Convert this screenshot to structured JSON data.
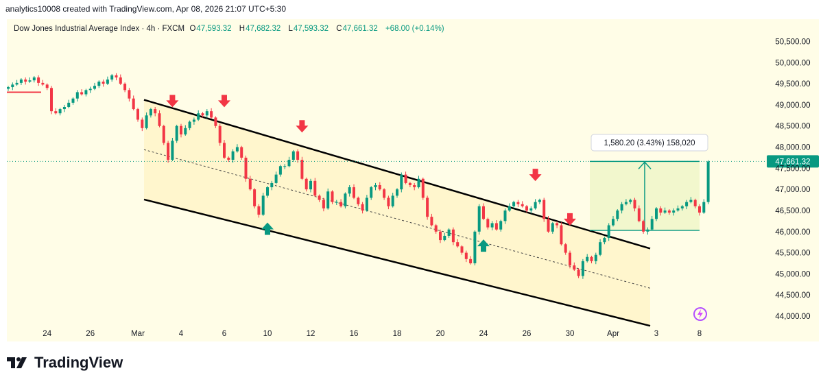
{
  "header": {
    "text": "analytics10008 created with TradingView.com, Apr 08, 2026 21:07 UTC+5:30"
  },
  "legend": {
    "symbol": "Dow Jones Industrial Average Index · 4h · FXCM",
    "o_label": "O",
    "o_value": "47,593.32",
    "h_label": "H",
    "h_value": "47,682.32",
    "l_label": "L",
    "l_value": "47,593.32",
    "c_label": "C",
    "c_value": "47,661.32",
    "change": "+68.00 (+0.14%)"
  },
  "footer": {
    "brand": "TradingView"
  },
  "chart_data": {
    "type": "candlestick",
    "title": "Dow Jones Industrial Average Index · 4h · FXCM",
    "ylim": [
      43800,
      50700
    ],
    "y_ticks": [
      44000,
      44500,
      45000,
      45500,
      46000,
      46500,
      47000,
      47500,
      48000,
      48500,
      49000,
      49500,
      50000,
      50500
    ],
    "y_tick_labels": [
      "44,000.00",
      "44,500.00",
      "45,000.00",
      "45,500.00",
      "46,000.00",
      "46,500.00",
      "47,000.00",
      "47,500.00",
      "48,000.00",
      "48,500.00",
      "49,000.00",
      "49,500.00",
      "50,000.00",
      "50,500.00"
    ],
    "x_tick_labels": [
      "24",
      "26",
      "Mar",
      "4",
      "6",
      "10",
      "12",
      "16",
      "18",
      "20",
      "24",
      "26",
      "30",
      "Apr",
      "3",
      "8"
    ],
    "x_tick_index": [
      9,
      19,
      30,
      40,
      50,
      60,
      70,
      80,
      90,
      100,
      110,
      120,
      130,
      140,
      150,
      160
    ],
    "last_price": 47661.32,
    "last_price_label": "47,661.32",
    "close": [
      49420,
      49480,
      49520,
      49600,
      49550,
      49580,
      49650,
      49520,
      49480,
      49400,
      48850,
      48800,
      48900,
      48950,
      49050,
      49150,
      49300,
      49250,
      49350,
      49380,
      49450,
      49550,
      49500,
      49600,
      49700,
      49650,
      49500,
      49350,
      49150,
      48900,
      48650,
      48450,
      48750,
      48900,
      48800,
      48500,
      48100,
      47700,
      48150,
      48500,
      48300,
      48450,
      48600,
      48650,
      48800,
      48750,
      48850,
      48700,
      48500,
      48100,
      47750,
      47700,
      47900,
      48000,
      47750,
      47250,
      47000,
      46600,
      46400,
      46850,
      47050,
      47150,
      47350,
      47550,
      47550,
      47700,
      47900,
      47700,
      47250,
      47000,
      47200,
      46850,
      46750,
      46550,
      46950,
      46700,
      46700,
      46600,
      46900,
      47050,
      46800,
      46650,
      46500,
      46800,
      47050,
      47100,
      47000,
      46800,
      46600,
      46850,
      47000,
      47350,
      47150,
      47100,
      47050,
      47250,
      46800,
      46350,
      46150,
      46000,
      45800,
      45900,
      46050,
      45750,
      45650,
      45500,
      45350,
      45250,
      46000,
      46600,
      46300,
      46100,
      46200,
      46050,
      46250,
      46500,
      46600,
      46700,
      46650,
      46600,
      46500,
      46550,
      46700,
      46750,
      46300,
      46000,
      46200,
      46150,
      45700,
      45500,
      45200,
      45100,
      44950,
      45300,
      45400,
      45300,
      45450,
      45750,
      45850,
      46150,
      46300,
      46500,
      46650,
      46700,
      46750,
      46550,
      46250,
      46000,
      46050,
      46300,
      46550,
      46450,
      46500,
      46450,
      46500,
      46550,
      46600,
      46700,
      46750,
      46600,
      46450,
      46700,
      47661
    ]
  },
  "annotations": {
    "measure_label": "1,580.20 (3.43%) 158,020",
    "channel": {
      "upper_start": 49120,
      "upper_end": 45600,
      "lower_start": 46760,
      "lower_end": 43770,
      "mid_start": 47940,
      "mid_end": 44660
    },
    "measure_box": {
      "low": 46030,
      "high": 47661
    },
    "down_arrow_index": [
      38,
      50,
      68,
      122,
      130
    ],
    "up_arrow_index": [
      60,
      110
    ]
  },
  "colors": {
    "up": "#089981",
    "down": "#f23645",
    "background": "#fffde7",
    "channel_fill": "#fff3c4",
    "measure_fill": "#f0f6c8"
  }
}
